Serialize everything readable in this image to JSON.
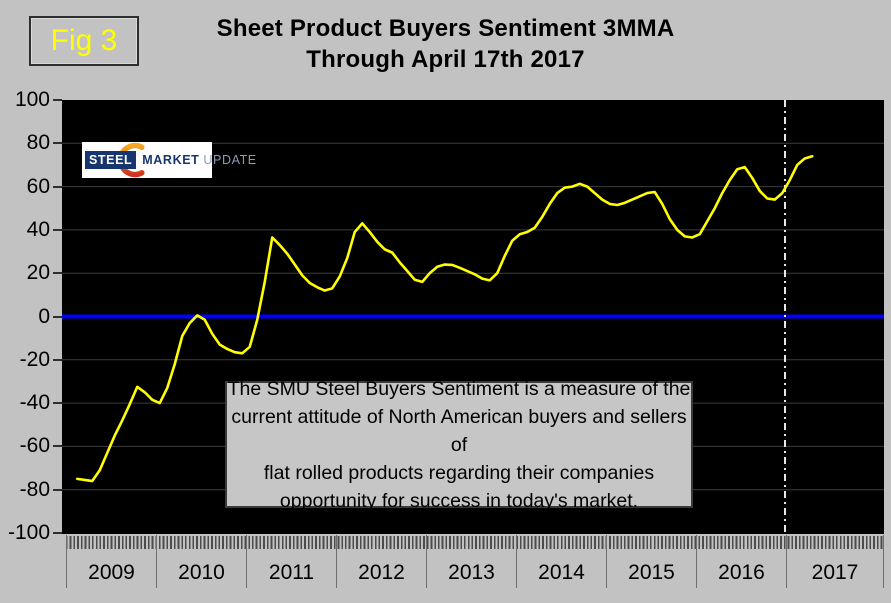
{
  "figure_label": "Fig 3",
  "title": {
    "line1": "Sheet Product Buyers Sentiment 3MMA",
    "line2": "Through April 17th 2017"
  },
  "logo": {
    "steel": "STEEL",
    "market": "MARKET",
    "update": "UPDATE"
  },
  "description": {
    "lines": [
      "The SMU Steel Buyers Sentiment is a measure of the",
      "current attitude of North American buyers and sellers of",
      "flat rolled products regarding their companies",
      "opportunity for success in today's market."
    ]
  },
  "colors": {
    "background": "#c2c2c2",
    "plot_background": "#000000",
    "gridline": "#3d3d3d",
    "series_line": "#ffff00",
    "zero_line": "#0000ff",
    "reference_line": "#e8e8e8",
    "text": "#000000",
    "figure_label": "#ffff00"
  },
  "chart_data": {
    "type": "line",
    "title": "Sheet Product Buyers Sentiment 3MMA Through April 17th 2017",
    "xlabel": "",
    "ylabel": "",
    "x_years": [
      "2009",
      "2010",
      "2011",
      "2012",
      "2013",
      "2014",
      "2015",
      "2016",
      "2017"
    ],
    "x_start_month": "2009-02",
    "x_end_month": "2017-04",
    "ylim": [
      -100,
      100
    ],
    "yticks": [
      100,
      80,
      60,
      40,
      20,
      0,
      -20,
      -40,
      -60,
      -80,
      -100
    ],
    "grid": "horizontal",
    "legend": "none",
    "zero_line": {
      "value": 0,
      "color": "#0000ff"
    },
    "reference_line": {
      "x": "2017-01",
      "style": "dash-dot",
      "color": "#e8e8e8"
    },
    "series": [
      {
        "name": "Sheet Product Buyers Sentiment 3MMA",
        "color": "#ffff00",
        "monthly_values": [
          -75,
          -75.5,
          -76,
          -71,
          -63,
          -55,
          -48,
          -40.5,
          -32.5,
          -35,
          -38.5,
          -40,
          -33,
          -22,
          -9,
          -3,
          0.5,
          -1.5,
          -8,
          -13,
          -15,
          -16.5,
          -17,
          -14,
          -1.5,
          16,
          36.5,
          33,
          29,
          24,
          19,
          15.5,
          13.5,
          12,
          13,
          18.5,
          27,
          39,
          43,
          39,
          34.5,
          31,
          29.5,
          25,
          21,
          17,
          16,
          20,
          23,
          24,
          23.8,
          22.5,
          21,
          19.5,
          17.5,
          16.7,
          20,
          28,
          35,
          38,
          39,
          41,
          46,
          52,
          57,
          59.5,
          60,
          61.3,
          60,
          57,
          54,
          52,
          51.5,
          52.5,
          54,
          55.5,
          57,
          57.5,
          52,
          45,
          40,
          37,
          36.5,
          38,
          44,
          50,
          57,
          63,
          68,
          69,
          64,
          58,
          54.5,
          54,
          57,
          63,
          70,
          73,
          74
        ]
      }
    ]
  }
}
